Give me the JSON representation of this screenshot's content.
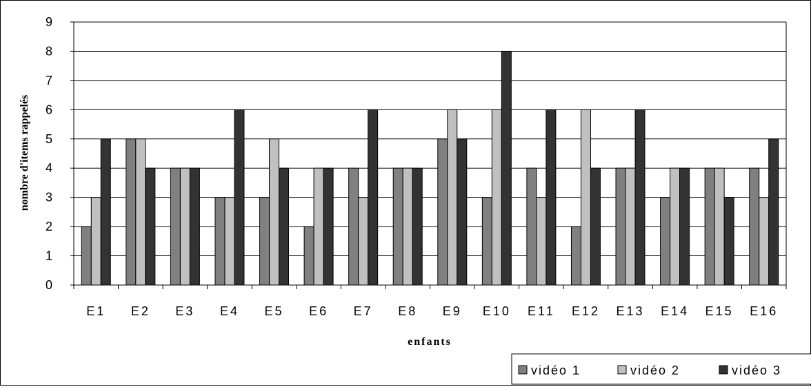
{
  "chart_data": {
    "type": "bar",
    "title": "",
    "xlabel": "enfants",
    "ylabel": "nombre d'items rappelés",
    "ylim": [
      0,
      9
    ],
    "yticks": [
      0,
      1,
      2,
      3,
      4,
      5,
      6,
      7,
      8,
      9
    ],
    "grid": "horizontal",
    "legend_position": "bottom-right",
    "categories": [
      "E1",
      "E2",
      "E3",
      "E4",
      "E5",
      "E6",
      "E7",
      "E8",
      "E9",
      "E10",
      "E11",
      "E12",
      "E13",
      "E14",
      "E15",
      "E16"
    ],
    "series": [
      {
        "name": "vidéo 1",
        "color": "#808080",
        "values": [
          2,
          5,
          4,
          3,
          3,
          2,
          4,
          4,
          5,
          3,
          4,
          2,
          4,
          3,
          4,
          4
        ]
      },
      {
        "name": "vidéo 2",
        "color": "#c0c0c0",
        "values": [
          3,
          5,
          4,
          3,
          5,
          4,
          3,
          4,
          6,
          6,
          3,
          6,
          4,
          4,
          4,
          3
        ]
      },
      {
        "name": "vidéo 3",
        "color": "#333333",
        "values": [
          5,
          4,
          4,
          6,
          4,
          4,
          6,
          4,
          5,
          8,
          6,
          4,
          6,
          4,
          3,
          5
        ]
      }
    ]
  }
}
